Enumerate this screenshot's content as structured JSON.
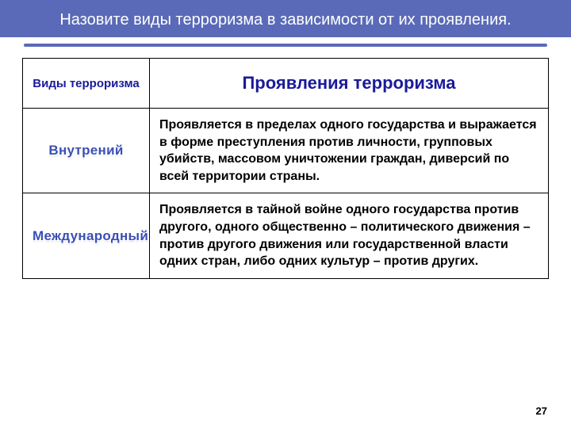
{
  "title": "Назовите виды терроризма в зависимости от их проявления.",
  "table": {
    "headers": {
      "type": "Виды терроризма",
      "desc": "Проявления терроризма"
    },
    "rows": [
      {
        "type": "Внутрений",
        "desc": "Проявляется в пределах одного государства и выражается в форме преступления против личности, групповых убийств, массовом уничтожении граждан, диверсий по всей территории страны."
      },
      {
        "type": "Международный",
        "desc": "Проявляется в тайной войне одного государства против другого, одного общественно – политического движения – против другого движения или государственной власти одних стран, либо одних культур – против других."
      }
    ]
  },
  "pageNumber": "27",
  "colors": {
    "bannerBg": "#5a6ab8",
    "bannerText": "#ffffff",
    "headerText": "#1a1a9a",
    "typeLabel": "#3a4fb5",
    "bodyText": "#000000",
    "border": "#000000"
  },
  "fontSizes": {
    "title": 20,
    "headerType": 15,
    "headerDesc": 22,
    "typeLabel": 17,
    "descText": 16,
    "pageNum": 13
  }
}
